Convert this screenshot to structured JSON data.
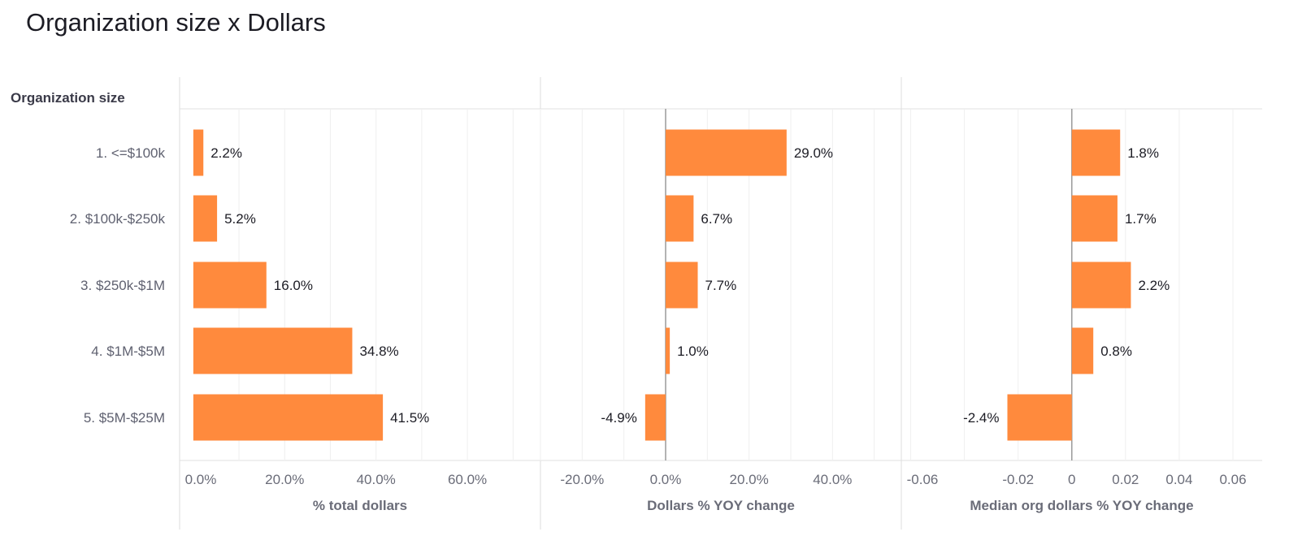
{
  "title": "Organization size x Dollars",
  "y_axis_title": "Organization size",
  "chart_data": {
    "type": "bar",
    "orientation": "horizontal",
    "title": "Organization size x Dollars",
    "ylabel": "Organization size",
    "categories": [
      "1. <=$100k",
      "2. $100k-$250k",
      "3. $250k-$1M",
      "4. $1M-$5M",
      "5. $5M-$25M"
    ],
    "bar_color": "#FF8A3D",
    "grid": true,
    "panels": [
      {
        "xlabel": "% total dollars",
        "xlim": [
          -0.03,
          0.76
        ],
        "ticks": [
          0,
          0.2,
          0.4,
          0.6
        ],
        "tick_labels": [
          "0.0%",
          "20.0%",
          "40.0%",
          "60.0%"
        ],
        "values": [
          0.022,
          0.052,
          0.16,
          0.348,
          0.415
        ],
        "data_labels": [
          "2.2%",
          "5.2%",
          "16.0%",
          "34.8%",
          "41.5%"
        ]
      },
      {
        "xlabel": "Dollars % YOY change",
        "xlim": [
          -0.3,
          0.565
        ],
        "ticks": [
          -0.2,
          0,
          0.2,
          0.4
        ],
        "tick_labels": [
          "-20.0%",
          "0.0%",
          "20.0%",
          "40.0%"
        ],
        "values": [
          0.29,
          0.067,
          0.077,
          0.01,
          -0.049
        ],
        "data_labels": [
          "29.0%",
          "6.7%",
          "7.7%",
          "1.0%",
          "-4.9%"
        ]
      },
      {
        "xlabel": "Median org dollars % YOY change",
        "xlim": [
          -0.0635,
          0.0709
        ],
        "ticks": [
          -0.06,
          -0.04,
          -0.02,
          0,
          0.02,
          0.04,
          0.06
        ],
        "tick_labels": [
          "-0.06",
          "",
          "-0.02",
          "0",
          "0.02",
          "0.04",
          "0.06"
        ],
        "values": [
          0.018,
          0.017,
          0.022,
          0.008,
          -0.024
        ],
        "data_labels": [
          "1.8%",
          "1.7%",
          "2.2%",
          "0.8%",
          "-2.4%"
        ]
      }
    ]
  }
}
